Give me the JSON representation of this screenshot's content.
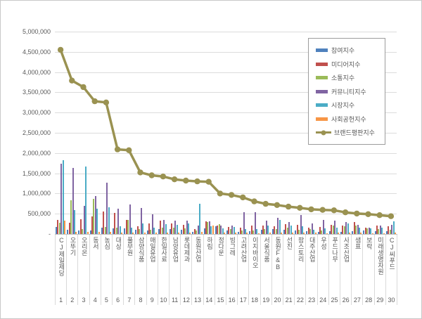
{
  "window": {
    "background": "#ffffff",
    "border_color": "#c9c9c9"
  },
  "chart_data": {
    "type": "combo (grouped bars + line)",
    "title": "",
    "xlabel": "",
    "ylabel": "",
    "grid": true,
    "legend_position": "top-right-inside",
    "axis_text_color": "#595959",
    "ylim": [
      0,
      5000000
    ],
    "ytick_step": 500000,
    "yticks": [
      {
        "value": 0,
        "label": "-"
      },
      {
        "value": 500000,
        "label": "500,000"
      },
      {
        "value": 1000000,
        "label": "1,000,000"
      },
      {
        "value": 1500000,
        "label": "1,500,000"
      },
      {
        "value": 2000000,
        "label": "2,000,000"
      },
      {
        "value": 2500000,
        "label": "2,500,000"
      },
      {
        "value": 3000000,
        "label": "3,000,000"
      },
      {
        "value": 3500000,
        "label": "3,500,000"
      },
      {
        "value": 4000000,
        "label": "4,000,000"
      },
      {
        "value": 4500000,
        "label": "4,500,000"
      },
      {
        "value": 5000000,
        "label": "5,000,000"
      }
    ],
    "categories": [
      "CJ제일제당",
      "오뚜기",
      "오리온",
      "동서",
      "농심",
      "대상",
      "풀무원",
      "삼양식품",
      "매일유업",
      "한일사료",
      "남양유업",
      "롯데제과",
      "동원산업",
      "하림",
      "정다운",
      "빙그레",
      "고려산업",
      "이지바이오",
      "서울식품",
      "동원F&B",
      "선진",
      "팜스토리",
      "대주산업",
      "우성",
      "푸드나무",
      "사조산업",
      "샘표",
      "보락",
      "미래생명자원",
      "CJ씨푸드"
    ],
    "ranks": [
      "1",
      "2",
      "3",
      "4",
      "5",
      "6",
      "7",
      "8",
      "9",
      "10",
      "11",
      "12",
      "13",
      "14",
      "15",
      "16",
      "17",
      "18",
      "19",
      "20",
      "21",
      "22",
      "23",
      "24",
      "25",
      "26",
      "27",
      "28",
      "29",
      "30"
    ],
    "series": [
      {
        "name": "참여지수",
        "type": "bar",
        "color": "#4F81BD",
        "values": [
          175000,
          105000,
          85000,
          80000,
          155000,
          140000,
          140000,
          100000,
          80000,
          120000,
          115000,
          100000,
          45000,
          135000,
          195000,
          90000,
          60000,
          70000,
          105000,
          120000,
          110000,
          85000,
          65000,
          55000,
          75000,
          60000,
          70000,
          90000,
          75000,
          65000
        ]
      },
      {
        "name": "미디어지수",
        "type": "bar",
        "color": "#C0504D",
        "values": [
          350000,
          280000,
          365000,
          440000,
          555000,
          515000,
          345000,
          190000,
          265000,
          335000,
          255000,
          230000,
          115000,
          320000,
          200000,
          180000,
          150000,
          205000,
          215000,
          185000,
          250000,
          220000,
          155000,
          180000,
          225000,
          205000,
          290000,
          155000,
          205000,
          190000
        ]
      },
      {
        "name": "소통지수",
        "type": "bar",
        "color": "#9BBB59",
        "values": [
          270000,
          830000,
          115000,
          870000,
          180000,
          160000,
          355000,
          115000,
          100000,
          150000,
          155000,
          140000,
          80000,
          290000,
          245000,
          120000,
          80000,
          90000,
          130000,
          130000,
          155000,
          110000,
          120000,
          90000,
          205000,
          190000,
          200000,
          140000,
          130000,
          110000
        ]
      },
      {
        "name": "커뮤니티지수",
        "type": "bar",
        "color": "#8064A2",
        "values": [
          1740000,
          1625000,
          700000,
          930000,
          1270000,
          630000,
          730000,
          645000,
          495000,
          345000,
          335000,
          335000,
          210000,
          305000,
          215000,
          210000,
          540000,
          530000,
          325000,
          395000,
          290000,
          470000,
          265000,
          350000,
          325000,
          300000,
          230000,
          165000,
          215000,
          230000
        ]
      },
      {
        "name": "시장지수",
        "type": "bar",
        "color": "#4BACC6",
        "values": [
          1830000,
          595000,
          1670000,
          630000,
          655000,
          190000,
          150000,
          265000,
          155000,
          240000,
          230000,
          265000,
          740000,
          190000,
          135000,
          180000,
          120000,
          130000,
          205000,
          345000,
          200000,
          190000,
          105000,
          140000,
          160000,
          255000,
          160000,
          140000,
          150000,
          320000
        ]
      },
      {
        "name": "사회공헌지수",
        "type": "bar",
        "color": "#F79646",
        "values": [
          335000,
          50000,
          55000,
          50000,
          45000,
          40000,
          40000,
          30000,
          35000,
          30000,
          30000,
          35000,
          55000,
          210000,
          30000,
          30000,
          30000,
          25000,
          30000,
          40000,
          35000,
          30000,
          30000,
          25000,
          30000,
          40000,
          30000,
          25000,
          25000,
          30000
        ]
      },
      {
        "name": "브랜드평판지수",
        "type": "line",
        "color": "#9A9251",
        "values": [
          4550000,
          3790000,
          3630000,
          3280000,
          3250000,
          2090000,
          2070000,
          1520000,
          1450000,
          1420000,
          1350000,
          1320000,
          1300000,
          1290000,
          1000000,
          965000,
          905000,
          805000,
          745000,
          715000,
          675000,
          645000,
          610000,
          595000,
          585000,
          535000,
          505000,
          490000,
          465000,
          440000
        ]
      }
    ]
  }
}
